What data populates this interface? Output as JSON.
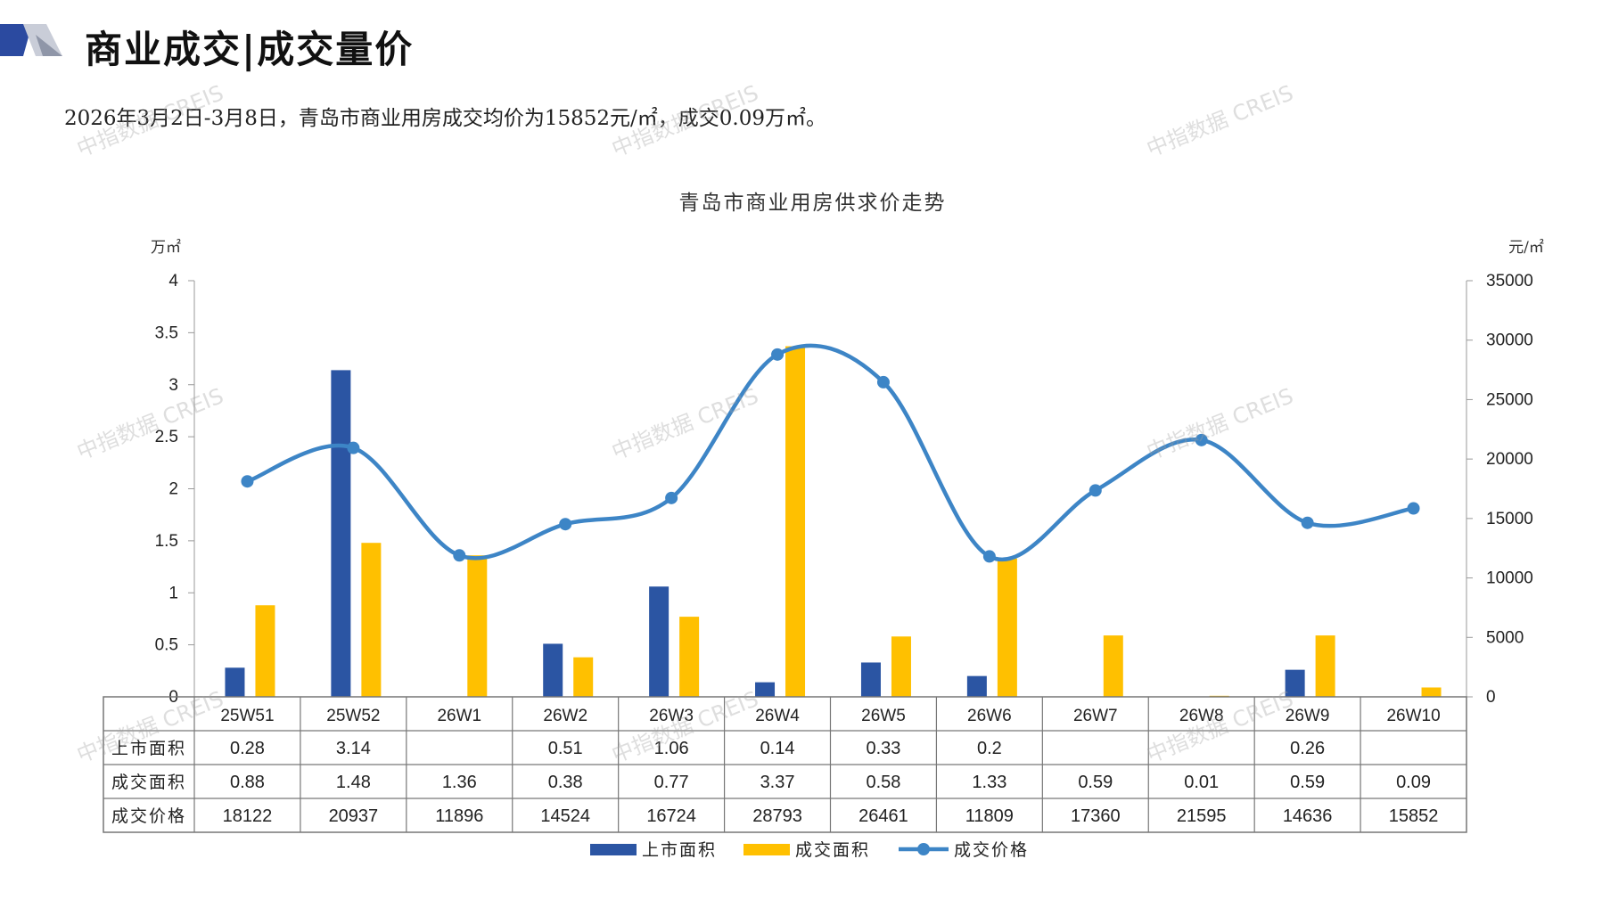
{
  "header": {
    "title": "商业成交|成交量价",
    "summary": "2026年3月2日-3月8日，青岛市商业用房成交均价为15852元/㎡，成交0.09万㎡。"
  },
  "watermark": "中指数据 CREIS",
  "colors": {
    "supply": "#2b55a3",
    "deal_area": "#ffc000",
    "price": "#3d85c6",
    "logo_dark": "#2b4aa0",
    "logo_light": "#c9cdd8"
  },
  "chart_data": {
    "type": "bar",
    "title": "青岛市商业用房供求价走势",
    "y_left_unit": "万㎡",
    "y_right_unit": "元/㎡",
    "y_left_ticks": [
      "0",
      "0.5",
      "1",
      "1.5",
      "2",
      "2.5",
      "3",
      "3.5",
      "4"
    ],
    "y_right_ticks": [
      "0",
      "5000",
      "10000",
      "15000",
      "20000",
      "25000",
      "30000",
      "35000"
    ],
    "ylim_left": [
      0,
      4
    ],
    "ylim_right": [
      0,
      35000
    ],
    "categories": [
      "25W51",
      "25W52",
      "26W1",
      "26W2",
      "26W3",
      "26W4",
      "26W5",
      "26W6",
      "26W7",
      "26W8",
      "26W9",
      "26W10"
    ],
    "series": [
      {
        "name": "上市面积",
        "type": "bar",
        "axis": "left",
        "values": [
          0.28,
          3.14,
          null,
          0.51,
          1.06,
          0.14,
          0.33,
          0.2,
          null,
          null,
          0.26,
          null
        ],
        "labels": [
          "0.28",
          "3.14",
          "",
          "0.51",
          "1.06",
          "0.14",
          "0.33",
          "0.2",
          "",
          "",
          "0.26",
          ""
        ]
      },
      {
        "name": "成交面积",
        "type": "bar",
        "axis": "left",
        "values": [
          0.88,
          1.48,
          1.36,
          0.38,
          0.77,
          3.37,
          0.58,
          1.33,
          0.59,
          0.01,
          0.59,
          0.09
        ],
        "labels": [
          "0.88",
          "1.48",
          "1.36",
          "0.38",
          "0.77",
          "3.37",
          "0.58",
          "1.33",
          "0.59",
          "0.01",
          "0.59",
          "0.09"
        ]
      },
      {
        "name": "成交价格",
        "type": "line",
        "axis": "right",
        "values": [
          18122,
          20937,
          11896,
          14524,
          16724,
          28793,
          26461,
          11809,
          17360,
          21595,
          14636,
          15852
        ],
        "labels": [
          "18122",
          "20937",
          "11896",
          "14524",
          "16724",
          "28793",
          "26461",
          "11809",
          "17360",
          "21595",
          "14636",
          "15852"
        ]
      }
    ],
    "legend_position": "bottom",
    "grid": false
  }
}
